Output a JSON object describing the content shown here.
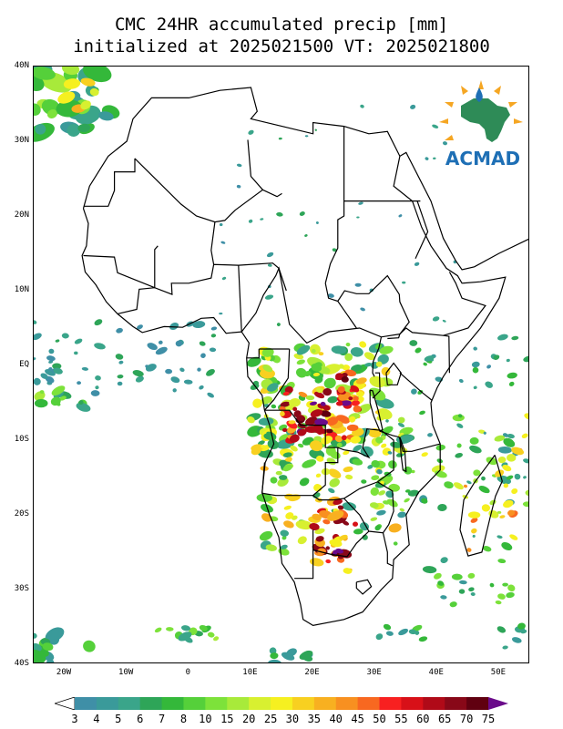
{
  "title": {
    "line1": "CMC 24HR accumulated precip [mm]",
    "line2": "initialized at 2025021500 VT: 2025021800"
  },
  "logo": {
    "text": "ACMAD"
  },
  "map": {
    "lat_range": [
      -40,
      40
    ],
    "lon_range": [
      -25,
      55
    ],
    "lat_labels": [
      "40N",
      "30N",
      "20N",
      "10N",
      "EQ",
      "10S",
      "20S",
      "30S",
      "40S"
    ],
    "lon_labels": [
      "20W",
      "10W",
      "0",
      "10E",
      "20E",
      "30E",
      "40E",
      "50E"
    ]
  },
  "colorbar": {
    "levels": [
      "3",
      "4",
      "5",
      "6",
      "7",
      "8",
      "10",
      "15",
      "20",
      "25",
      "30",
      "35",
      "40",
      "45",
      "50",
      "55",
      "60",
      "65",
      "70",
      "75"
    ],
    "colors": [
      "#ffffff",
      "#3f8fa7",
      "#3a9a9a",
      "#3aa58a",
      "#2ea558",
      "#34b83a",
      "#55d03a",
      "#7de23a",
      "#a8ea3a",
      "#d8f030",
      "#f6f020",
      "#f8d020",
      "#f8b020",
      "#f89020",
      "#f86820",
      "#f82020",
      "#d81018",
      "#b00a18",
      "#880818",
      "#600010",
      "#6a0a8a"
    ]
  }
}
